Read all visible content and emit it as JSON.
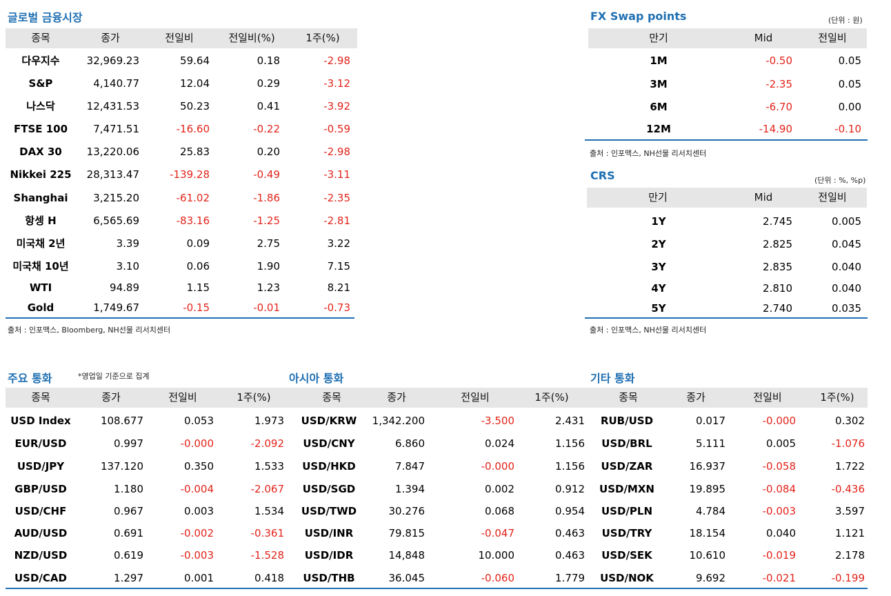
{
  "global": {
    "title": "글로벌 금융시장",
    "headers": [
      "종목",
      "종가",
      "전일비",
      "전일비(%)",
      "1주(%)"
    ],
    "rows": [
      [
        "다우지수",
        "32,969.23",
        "59.64",
        "0.18",
        "-2.98"
      ],
      [
        "S&P",
        "4,140.77",
        "12.04",
        "0.29",
        "-3.12"
      ],
      [
        "나스닥",
        "12,431.53",
        "50.23",
        "0.41",
        "-3.92"
      ],
      [
        "FTSE 100",
        "7,471.51",
        "-16.60",
        "-0.22",
        "-0.59"
      ],
      [
        "DAX 30",
        "13,220.06",
        "25.83",
        "0.20",
        "-2.98"
      ],
      [
        "Nikkei 225",
        "28,313.47",
        "-139.28",
        "-0.49",
        "-3.11"
      ],
      [
        "Shanghai",
        "3,215.20",
        "-61.02",
        "-1.86",
        "-2.35"
      ],
      [
        "항셍 H",
        "6,565.69",
        "-83.16",
        "-1.25",
        "-2.81"
      ],
      [
        "미국채 2년",
        "3.39",
        "0.09",
        "2.75",
        "3.22"
      ],
      [
        "미국채 10년",
        "3.10",
        "0.06",
        "1.90",
        "7.15"
      ],
      [
        "WTI",
        "94.89",
        "1.15",
        "1.23",
        "8.21"
      ],
      [
        "Gold",
        "1,749.67",
        "-0.15",
        "-0.01",
        "-0.73"
      ]
    ],
    "source": "출처 : 인포맥스, Bloomberg, NH선물 리서치센터"
  },
  "swap": {
    "title": "FX Swap points",
    "unit": "(단위 : 원)",
    "headers": [
      "만기",
      "Mid",
      "전일비"
    ],
    "rows": [
      [
        "1M",
        "-0.50",
        "0.05"
      ],
      [
        "3M",
        "-2.35",
        "0.05"
      ],
      [
        "6M",
        "-6.70",
        "0.00"
      ],
      [
        "12M",
        "-14.90",
        "-0.10"
      ]
    ],
    "source": "출처 : 인포맥스, NH선물 리서치센터"
  },
  "crs": {
    "title": "CRS",
    "unit": "(단위 : %, %p)",
    "headers": [
      "만기",
      "Mid",
      "전일비"
    ],
    "rows": [
      [
        "1Y",
        "2.745",
        "0.005"
      ],
      [
        "2Y",
        "2.825",
        "0.045"
      ],
      [
        "3Y",
        "2.835",
        "0.040"
      ],
      [
        "4Y",
        "2.810",
        "0.040"
      ],
      [
        "5Y",
        "2.740",
        "0.035"
      ]
    ],
    "source": "출처 : 인포맥스, NH선물 리서치센터"
  },
  "currencies": {
    "major_title": "주요 통화",
    "note": "*영업일 기준으로 집계",
    "asia_title": "아시아 통화",
    "other_title": "기타 통화",
    "headers": [
      "종목",
      "종가",
      "전일비",
      "1주(%)"
    ],
    "major": [
      [
        "USD Index",
        "108.677",
        "0.053",
        "1.973"
      ],
      [
        "EUR/USD",
        "0.997",
        "-0.000",
        "-2.092"
      ],
      [
        "USD/JPY",
        "137.120",
        "0.350",
        "1.533"
      ],
      [
        "GBP/USD",
        "1.180",
        "-0.004",
        "-2.067"
      ],
      [
        "USD/CHF",
        "0.967",
        "0.003",
        "1.534"
      ],
      [
        "AUD/USD",
        "0.691",
        "-0.002",
        "-0.361"
      ],
      [
        "NZD/USD",
        "0.619",
        "-0.003",
        "-1.528"
      ],
      [
        "USD/CAD",
        "1.297",
        "0.001",
        "0.418"
      ]
    ],
    "asia": [
      [
        "USD/KRW",
        "1,342.200",
        "-3.500",
        "2.431"
      ],
      [
        "USD/CNY",
        "6.860",
        "0.024",
        "1.156"
      ],
      [
        "USD/HKD",
        "7.847",
        "-0.000",
        "1.156"
      ],
      [
        "USD/SGD",
        "1.394",
        "0.002",
        "0.912"
      ],
      [
        "USD/TWD",
        "30.276",
        "0.068",
        "0.954"
      ],
      [
        "USD/INR",
        "79.815",
        "-0.047",
        "0.463"
      ],
      [
        "USD/IDR",
        "14,848",
        "10.000",
        "0.463"
      ],
      [
        "USD/THB",
        "36.045",
        "-0.060",
        "1.779"
      ]
    ],
    "other": [
      [
        "RUB/USD",
        "0.017",
        "-0.000",
        "0.302"
      ],
      [
        "USD/BRL",
        "5.111",
        "0.005",
        "-1.076"
      ],
      [
        "USD/ZAR",
        "16.937",
        "-0.058",
        "1.722"
      ],
      [
        "USD/MXN",
        "19.895",
        "-0.084",
        "-0.436"
      ],
      [
        "USD/PLN",
        "4.784",
        "-0.003",
        "3.597"
      ],
      [
        "USD/TRY",
        "18.154",
        "0.040",
        "1.121"
      ],
      [
        "USD/SEK",
        "10.610",
        "-0.019",
        "2.178"
      ],
      [
        "USD/NOK",
        "9.692",
        "-0.021",
        "-0.199"
      ]
    ]
  }
}
